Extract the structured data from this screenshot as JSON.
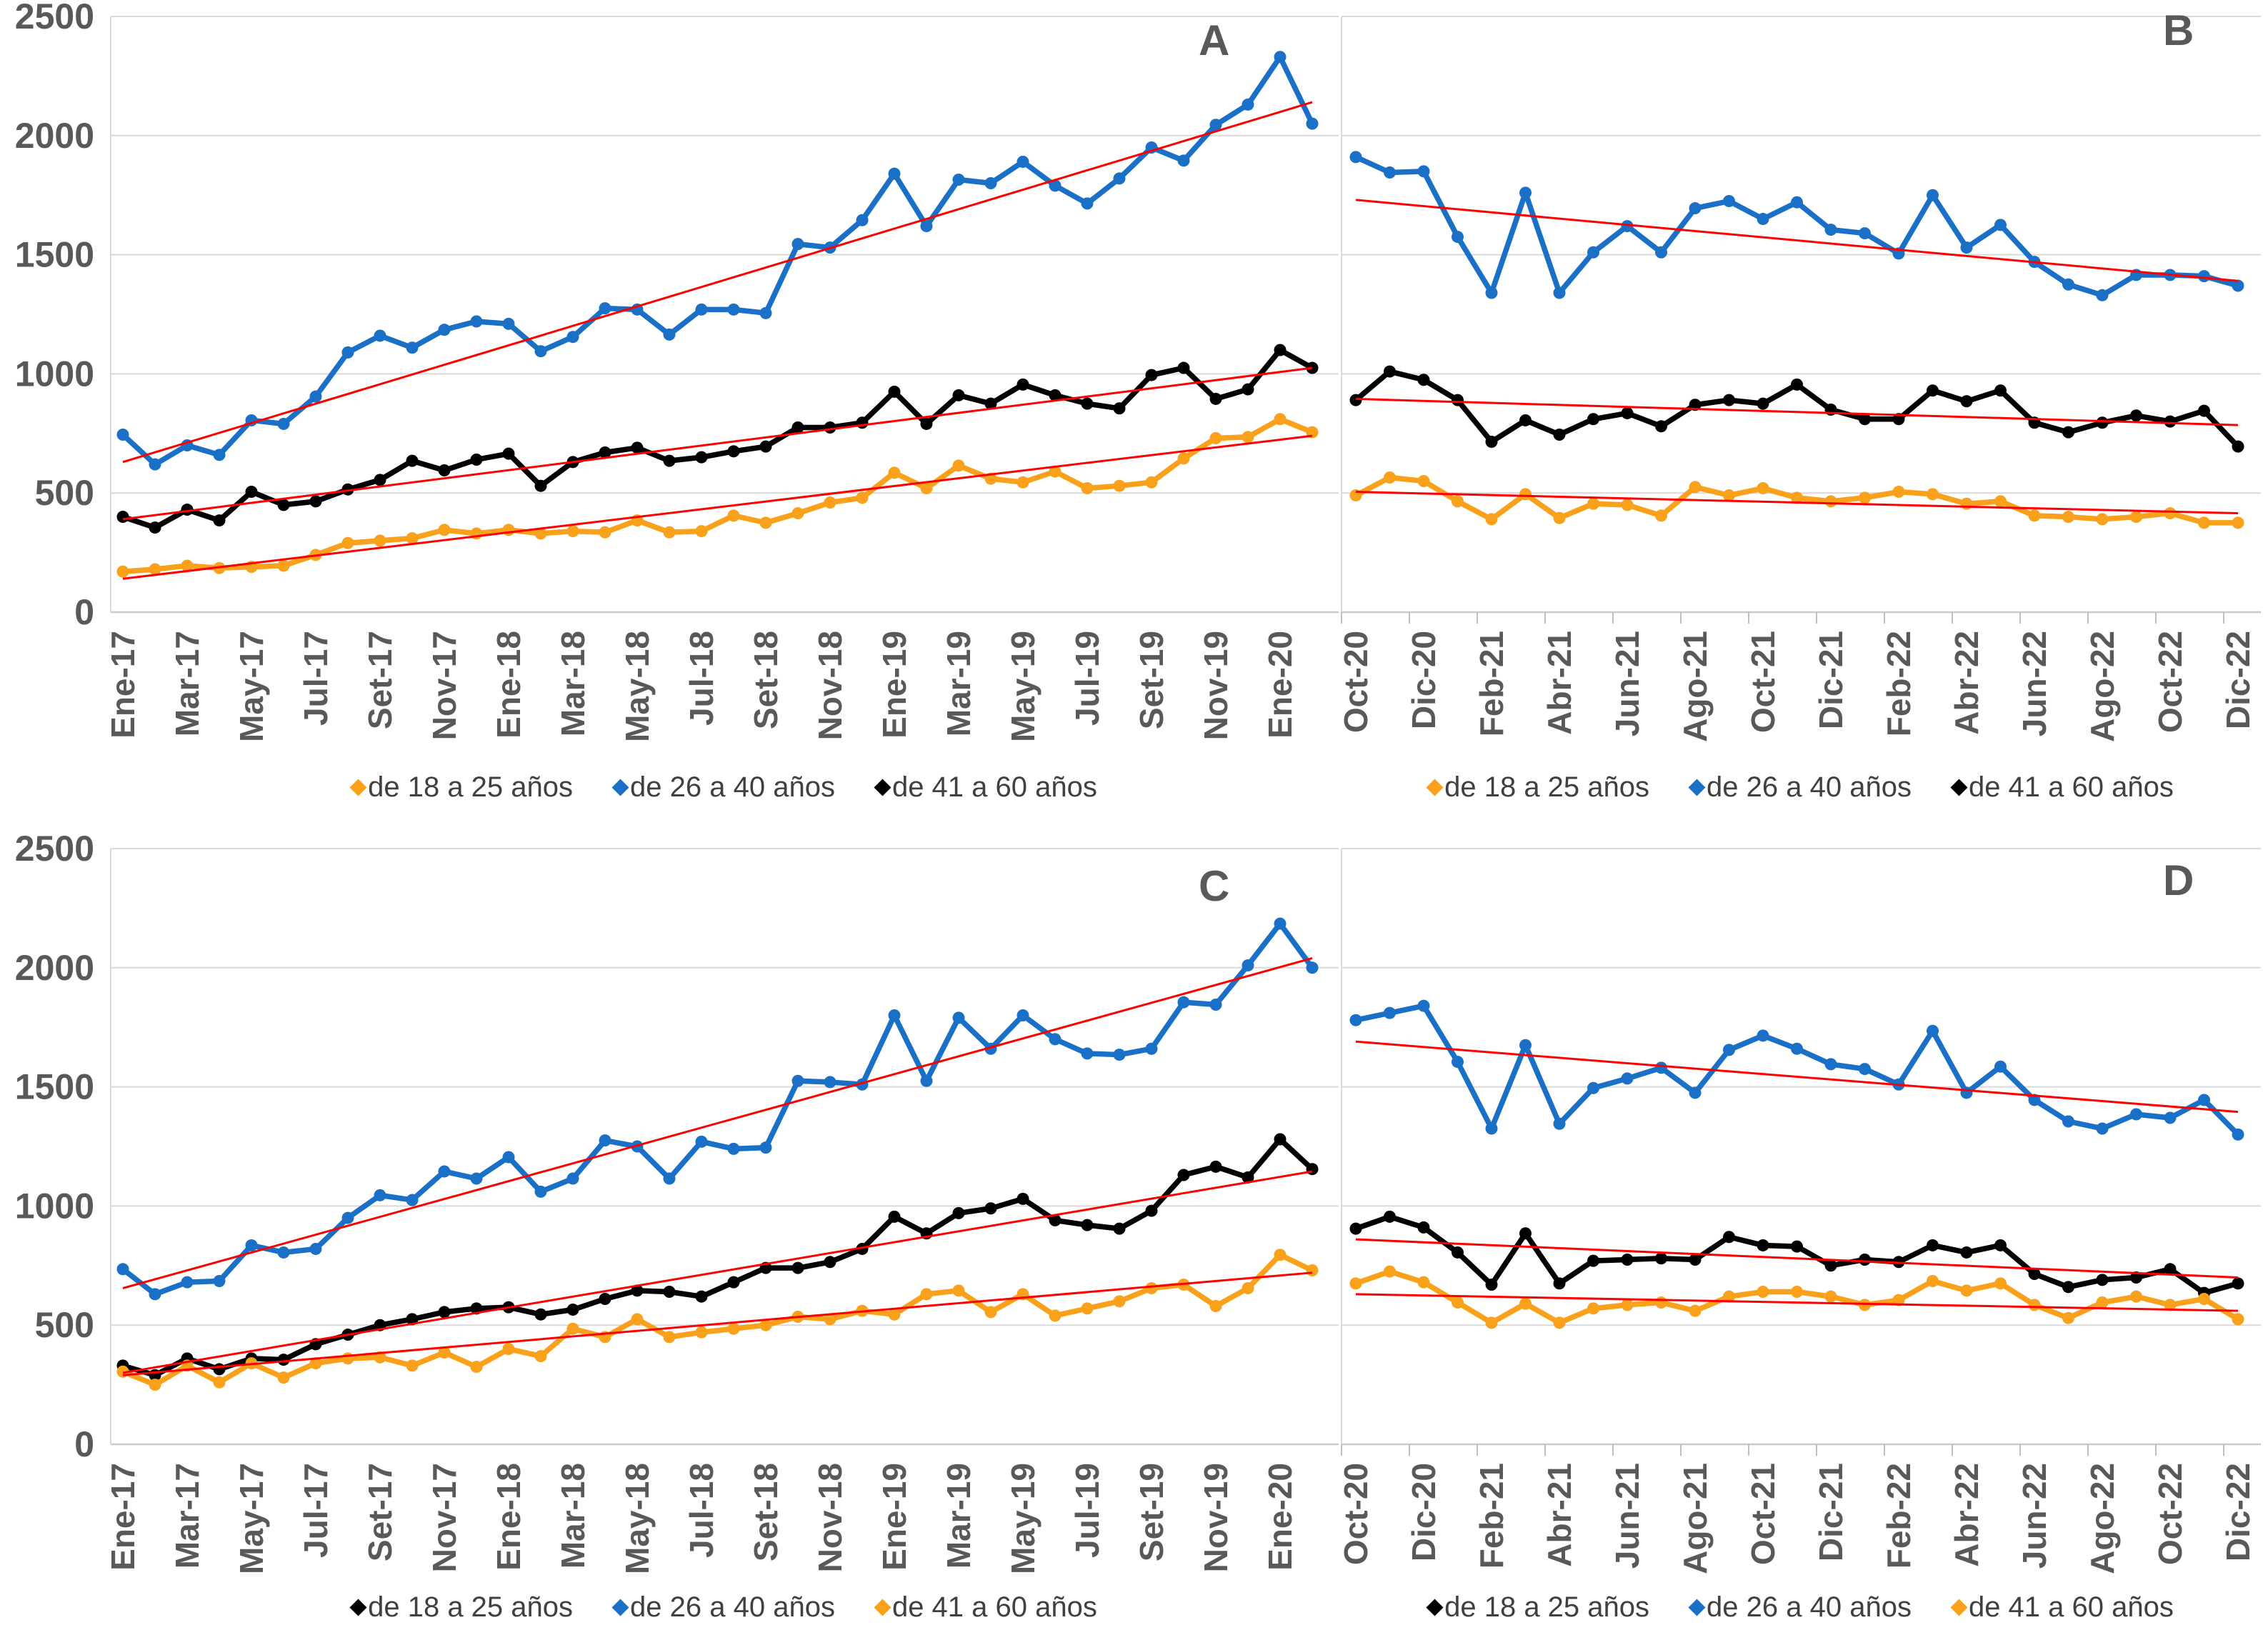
{
  "figure_title": "",
  "colors": {
    "orange": "#F9A11B",
    "blue": "#1A6FC7",
    "black": "#000000",
    "trend_red": "#FF0000",
    "gridline": "#D9D9D9",
    "axis_text": "#595959",
    "legend_text": "#404040"
  },
  "y_axis": {
    "ticks": [
      0,
      500,
      1000,
      1500,
      2000,
      2500
    ],
    "ylim": [
      0,
      2500
    ]
  },
  "chart_data": [
    {
      "id": "A",
      "panel_label": "A",
      "type": "line",
      "x_tick_labels": [
        "Ene-17",
        "Mar-17",
        "May-17",
        "Jul-17",
        "Set-17",
        "Nov-17",
        "Ene-18",
        "Mar-18",
        "May-18",
        "Jul-18",
        "Set-18",
        "Nov-18",
        "Ene-19",
        "Mar-19",
        "May-19",
        "Jul-19",
        "Set-19",
        "Nov-19",
        "Ene-20"
      ],
      "ylim": [
        0,
        2500
      ],
      "grid": "horizontal",
      "legend_position": "bottom",
      "series": [
        {
          "name": "de 18 a 25 años",
          "color": "orange",
          "values": [
            170,
            180,
            195,
            185,
            190,
            195,
            240,
            290,
            300,
            310,
            345,
            330,
            345,
            330,
            340,
            335,
            385,
            335,
            340,
            405,
            375,
            415,
            460,
            480,
            585,
            520,
            615,
            560,
            545,
            590,
            520,
            530,
            545,
            645,
            730,
            735,
            810,
            755
          ],
          "trend": {
            "start": 140,
            "end": 740
          }
        },
        {
          "name": "de 26 a 40 años",
          "color": "blue",
          "values": [
            745,
            620,
            700,
            660,
            805,
            790,
            905,
            1090,
            1160,
            1110,
            1185,
            1220,
            1210,
            1095,
            1155,
            1275,
            1270,
            1165,
            1270,
            1270,
            1255,
            1545,
            1530,
            1645,
            1840,
            1620,
            1815,
            1800,
            1890,
            1790,
            1715,
            1820,
            1950,
            1895,
            2045,
            2130,
            2330,
            2050
          ],
          "trend": {
            "start": 630,
            "end": 2140
          }
        },
        {
          "name": "de 41 a 60 años",
          "color": "black",
          "values": [
            400,
            355,
            430,
            385,
            505,
            450,
            465,
            515,
            555,
            635,
            595,
            640,
            665,
            530,
            630,
            670,
            690,
            635,
            650,
            675,
            695,
            775,
            775,
            795,
            925,
            790,
            910,
            875,
            955,
            910,
            875,
            855,
            995,
            1025,
            895,
            935,
            1100,
            1025
          ],
          "trend": {
            "start": 390,
            "end": 1025
          }
        }
      ]
    },
    {
      "id": "B",
      "panel_label": "B",
      "type": "line",
      "x_tick_labels": [
        "Oct-20",
        "Dic-20",
        "Feb-21",
        "Abr-21",
        "Jun-21",
        "Ago-21",
        "Oct-21",
        "Dic-21",
        "Feb-22",
        "Abr-22",
        "Jun-22",
        "Ago-22",
        "Oct-22",
        "Dic-22"
      ],
      "ylim": [
        0,
        2500
      ],
      "grid": "horizontal",
      "legend_position": "bottom",
      "series": [
        {
          "name": "de 18 a 25 años",
          "color": "orange",
          "values": [
            490,
            565,
            550,
            465,
            390,
            495,
            395,
            455,
            450,
            405,
            525,
            490,
            520,
            480,
            465,
            480,
            505,
            495,
            455,
            465,
            405,
            400,
            390,
            400,
            415,
            375,
            375
          ],
          "trend": {
            "start": 505,
            "end": 415
          }
        },
        {
          "name": "de 26 a 40 años",
          "color": "blue",
          "values": [
            1910,
            1845,
            1850,
            1575,
            1340,
            1760,
            1340,
            1510,
            1620,
            1510,
            1695,
            1725,
            1650,
            1720,
            1605,
            1590,
            1505,
            1750,
            1530,
            1625,
            1470,
            1375,
            1330,
            1415,
            1415,
            1410,
            1370
          ],
          "trend": {
            "start": 1730,
            "end": 1390
          }
        },
        {
          "name": "de 41 a 60 años",
          "color": "black",
          "values": [
            890,
            1010,
            975,
            890,
            715,
            805,
            745,
            810,
            835,
            780,
            870,
            890,
            875,
            955,
            850,
            810,
            810,
            930,
            885,
            930,
            795,
            755,
            795,
            825,
            800,
            845,
            695
          ],
          "trend": {
            "start": 895,
            "end": 785
          }
        }
      ]
    },
    {
      "id": "C",
      "panel_label": "C",
      "type": "line",
      "x_tick_labels": [
        "Ene-17",
        "Mar-17",
        "May-17",
        "Jul-17",
        "Set-17",
        "Nov-17",
        "Ene-18",
        "Mar-18",
        "May-18",
        "Jul-18",
        "Set-18",
        "Nov-18",
        "Ene-19",
        "Mar-19",
        "May-19",
        "Jul-19",
        "Set-19",
        "Nov-19",
        "Ene-20"
      ],
      "ylim": [
        0,
        2500
      ],
      "grid": "horizontal",
      "legend_position": "bottom",
      "series": [
        {
          "name": "de 18 a 25 años",
          "color": "black",
          "values": [
            330,
            290,
            360,
            315,
            360,
            355,
            420,
            460,
            500,
            525,
            555,
            570,
            575,
            545,
            565,
            610,
            645,
            640,
            620,
            680,
            740,
            740,
            765,
            820,
            955,
            885,
            970,
            990,
            1030,
            940,
            920,
            905,
            980,
            1130,
            1165,
            1120,
            1280,
            1155
          ],
          "trend": {
            "start": 300,
            "end": 1145
          }
        },
        {
          "name": "de 26 a 40 años",
          "color": "blue",
          "values": [
            735,
            630,
            680,
            685,
            835,
            805,
            820,
            950,
            1045,
            1025,
            1145,
            1115,
            1205,
            1060,
            1115,
            1275,
            1250,
            1115,
            1270,
            1240,
            1245,
            1525,
            1520,
            1510,
            1800,
            1525,
            1790,
            1660,
            1800,
            1700,
            1640,
            1635,
            1660,
            1855,
            1845,
            2010,
            2185,
            2000
          ],
          "trend": {
            "start": 655,
            "end": 2040
          }
        },
        {
          "name": "de 41 a 60 años",
          "color": "orange",
          "values": [
            305,
            250,
            330,
            260,
            340,
            280,
            340,
            360,
            365,
            330,
            385,
            325,
            400,
            370,
            485,
            450,
            525,
            450,
            470,
            485,
            500,
            535,
            525,
            560,
            545,
            630,
            645,
            555,
            630,
            540,
            570,
            600,
            655,
            670,
            580,
            655,
            795,
            730
          ],
          "trend": {
            "start": 290,
            "end": 720
          }
        }
      ]
    },
    {
      "id": "D",
      "panel_label": "D",
      "type": "line",
      "x_tick_labels": [
        "Oct-20",
        "Dic-20",
        "Feb-21",
        "Abr-21",
        "Jun-21",
        "Ago-21",
        "Oct-21",
        "Dic-21",
        "Feb-22",
        "Abr-22",
        "Jun-22",
        "Ago-22",
        "Oct-22",
        "Dic-22"
      ],
      "ylim": [
        0,
        2500
      ],
      "grid": "horizontal",
      "legend_position": "bottom",
      "series": [
        {
          "name": "de 18 a 25 años",
          "color": "black",
          "values": [
            905,
            955,
            910,
            805,
            670,
            885,
            675,
            770,
            775,
            780,
            775,
            870,
            835,
            830,
            750,
            775,
            765,
            835,
            805,
            835,
            715,
            660,
            690,
            700,
            735,
            635,
            675
          ],
          "trend": {
            "start": 860,
            "end": 700
          }
        },
        {
          "name": "de 26 a 40 años",
          "color": "blue",
          "values": [
            1780,
            1810,
            1840,
            1605,
            1325,
            1675,
            1345,
            1495,
            1535,
            1580,
            1475,
            1655,
            1715,
            1660,
            1595,
            1575,
            1510,
            1735,
            1475,
            1585,
            1445,
            1355,
            1325,
            1385,
            1370,
            1445,
            1300
          ],
          "trend": {
            "start": 1690,
            "end": 1395
          }
        },
        {
          "name": "de 41 a 60 años",
          "color": "orange",
          "values": [
            675,
            725,
            680,
            595,
            510,
            590,
            510,
            570,
            585,
            595,
            560,
            620,
            640,
            640,
            620,
            585,
            605,
            685,
            645,
            675,
            585,
            530,
            595,
            620,
            585,
            610,
            525
          ],
          "trend": {
            "start": 630,
            "end": 560
          }
        }
      ]
    }
  ]
}
